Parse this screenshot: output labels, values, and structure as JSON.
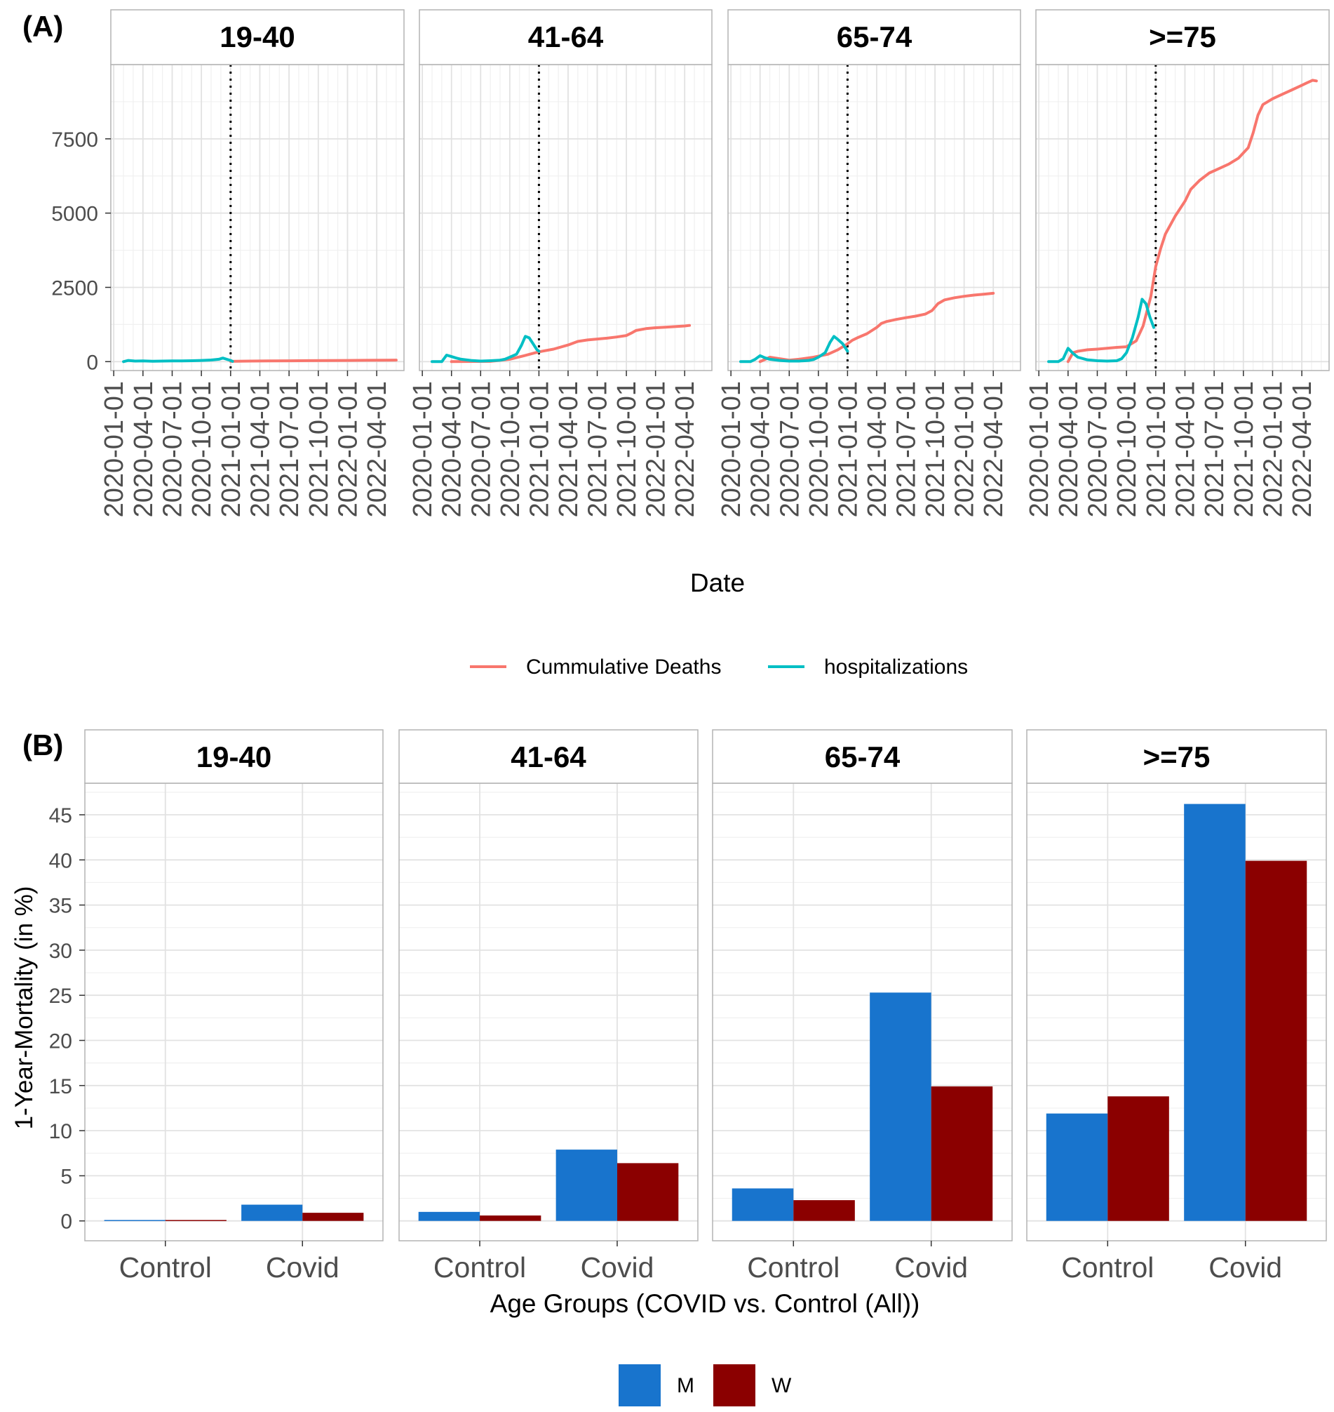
{
  "chart_data": [
    {
      "type": "line",
      "panel_tag": "(A)",
      "facets": [
        "19-40",
        "41-64",
        "65-74",
        ">=75"
      ],
      "xlabel": "Date",
      "ylabel": "",
      "ylim": [
        -300,
        10000
      ],
      "yticks": [
        0,
        2500,
        5000,
        7500
      ],
      "xticks": [
        "2020-01-01",
        "2020-04-01",
        "2020-07-01",
        "2020-10-01",
        "2021-01-01",
        "2021-04-01",
        "2021-07-01",
        "2021-10-01",
        "2022-01-01",
        "2022-04-01"
      ],
      "xlim_months": [
        -0.3,
        29.8
      ],
      "vline_month": 12,
      "grid": true,
      "legend_position": "bottom",
      "series": [
        {
          "name": "Cummulative Deaths",
          "color": "#F8766D",
          "panels": [
            [
              [
                12,
                10
              ],
              [
                14,
                20
              ],
              [
                16,
                25
              ],
              [
                18,
                28
              ],
              [
                20,
                32
              ],
              [
                22,
                36
              ],
              [
                24,
                40
              ],
              [
                26,
                45
              ],
              [
                28,
                50
              ],
              [
                29,
                52
              ]
            ],
            [
              [
                3,
                0
              ],
              [
                7,
                10
              ],
              [
                9,
                80
              ],
              [
                10.5,
                200
              ],
              [
                12,
                330
              ],
              [
                13.5,
                420
              ],
              [
                15,
                560
              ],
              [
                16,
                680
              ],
              [
                17,
                730
              ],
              [
                18,
                760
              ],
              [
                19,
                790
              ],
              [
                20,
                830
              ],
              [
                21,
                880
              ],
              [
                21.5,
                960
              ],
              [
                22,
                1050
              ],
              [
                23,
                1110
              ],
              [
                24,
                1140
              ],
              [
                25,
                1160
              ],
              [
                26,
                1180
              ],
              [
                27,
                1200
              ],
              [
                27.5,
                1220
              ]
            ],
            [
              [
                3,
                0
              ],
              [
                4,
                150
              ],
              [
                5,
                100
              ],
              [
                6,
                50
              ],
              [
                7,
                80
              ],
              [
                8.5,
                150
              ],
              [
                10,
                250
              ],
              [
                11,
                400
              ],
              [
                12,
                600
              ],
              [
                12.5,
                720
              ],
              [
                13,
                800
              ],
              [
                14,
                940
              ],
              [
                15,
                1150
              ],
              [
                15.5,
                1290
              ],
              [
                16,
                1350
              ],
              [
                17,
                1420
              ],
              [
                18,
                1480
              ],
              [
                19,
                1530
              ],
              [
                20,
                1600
              ],
              [
                20.7,
                1720
              ],
              [
                21.3,
                1950
              ],
              [
                22,
                2080
              ],
              [
                23,
                2150
              ],
              [
                24,
                2200
              ],
              [
                25,
                2240
              ],
              [
                26,
                2270
              ],
              [
                27,
                2300
              ]
            ],
            [
              [
                3,
                0
              ],
              [
                3.5,
                300
              ],
              [
                4,
                350
              ],
              [
                5,
                400
              ],
              [
                6,
                420
              ],
              [
                7,
                450
              ],
              [
                8,
                480
              ],
              [
                9,
                500
              ],
              [
                10,
                700
              ],
              [
                10.7,
                1200
              ],
              [
                11.5,
                2200
              ],
              [
                12,
                3200
              ],
              [
                12.5,
                3800
              ],
              [
                13,
                4300
              ],
              [
                14,
                4900
              ],
              [
                15,
                5400
              ],
              [
                15.6,
                5800
              ],
              [
                16.5,
                6100
              ],
              [
                17.5,
                6350
              ],
              [
                18.5,
                6500
              ],
              [
                19.5,
                6650
              ],
              [
                20.5,
                6850
              ],
              [
                21.5,
                7200
              ],
              [
                22,
                7700
              ],
              [
                22.5,
                8300
              ],
              [
                23,
                8650
              ],
              [
                24,
                8850
              ],
              [
                25,
                9000
              ],
              [
                26,
                9150
              ],
              [
                27,
                9300
              ],
              [
                27.5,
                9380
              ],
              [
                28.1,
                9470
              ],
              [
                28.5,
                9450
              ]
            ]
          ]
        },
        {
          "name": "hospitalizations",
          "color": "#00BFC4",
          "panels": [
            [
              [
                1,
                0
              ],
              [
                1.5,
                40
              ],
              [
                2.2,
                20
              ],
              [
                3,
                25
              ],
              [
                4,
                15
              ],
              [
                5,
                20
              ],
              [
                6,
                25
              ],
              [
                7,
                25
              ],
              [
                8,
                30
              ],
              [
                9,
                40
              ],
              [
                10,
                55
              ],
              [
                10.8,
                80
              ],
              [
                11.2,
                120
              ],
              [
                12,
                40
              ],
              [
                12.2,
                10
              ]
            ],
            [
              [
                1,
                0
              ],
              [
                2,
                0
              ],
              [
                2.5,
                220
              ],
              [
                3,
                170
              ],
              [
                3.5,
                120
              ],
              [
                4,
                80
              ],
              [
                5,
                40
              ],
              [
                6,
                20
              ],
              [
                7,
                30
              ],
              [
                8,
                50
              ],
              [
                8.5,
                80
              ],
              [
                9,
                150
              ],
              [
                9.7,
                250
              ],
              [
                10.2,
                550
              ],
              [
                10.6,
                850
              ],
              [
                11,
                800
              ],
              [
                11.4,
                600
              ],
              [
                11.8,
                400
              ],
              [
                12,
                350
              ]
            ],
            [
              [
                1,
                0
              ],
              [
                2,
                0
              ],
              [
                2.5,
                80
              ],
              [
                3,
                200
              ],
              [
                3.5,
                130
              ],
              [
                4,
                80
              ],
              [
                5,
                40
              ],
              [
                6,
                20
              ],
              [
                7,
                20
              ],
              [
                8,
                40
              ],
              [
                8.5,
                70
              ],
              [
                9,
                150
              ],
              [
                9.7,
                300
              ],
              [
                10.2,
                650
              ],
              [
                10.6,
                850
              ],
              [
                11,
                750
              ],
              [
                11.5,
                600
              ],
              [
                12,
                350
              ]
            ],
            [
              [
                1,
                0
              ],
              [
                2,
                0
              ],
              [
                2.5,
                100
              ],
              [
                3,
                450
              ],
              [
                3.5,
                280
              ],
              [
                4,
                150
              ],
              [
                5,
                60
              ],
              [
                6,
                30
              ],
              [
                7,
                20
              ],
              [
                8,
                30
              ],
              [
                8.5,
                100
              ],
              [
                9,
                300
              ],
              [
                9.6,
                800
              ],
              [
                10.2,
                1500
              ],
              [
                10.6,
                2100
              ],
              [
                11,
                1950
              ],
              [
                11.4,
                1500
              ],
              [
                11.8,
                1150
              ]
            ]
          ]
        }
      ]
    },
    {
      "type": "bar",
      "panel_tag": "(B)",
      "facets": [
        "19-40",
        "41-64",
        "65-74",
        ">=75"
      ],
      "categories": [
        "Control",
        "Covid"
      ],
      "xlabel": "Age Groups (COVID vs. Control (All))",
      "ylabel": "1-Year-Mortality (in %)",
      "ylim": [
        -2.2,
        48.5
      ],
      "yticks": [
        0,
        5,
        10,
        15,
        20,
        25,
        30,
        35,
        40,
        45
      ],
      "grid": true,
      "legend_position": "bottom",
      "series": [
        {
          "name": "M",
          "color": "#1874CD",
          "panels": [
            [
              0.1,
              1.8
            ],
            [
              1.0,
              7.9
            ],
            [
              3.6,
              25.3
            ],
            [
              11.9,
              46.2
            ]
          ]
        },
        {
          "name": "W",
          "color": "#8B0000",
          "panels": [
            [
              0.1,
              0.9
            ],
            [
              0.6,
              6.4
            ],
            [
              2.3,
              14.9
            ],
            [
              13.8,
              39.9
            ]
          ]
        }
      ]
    }
  ]
}
